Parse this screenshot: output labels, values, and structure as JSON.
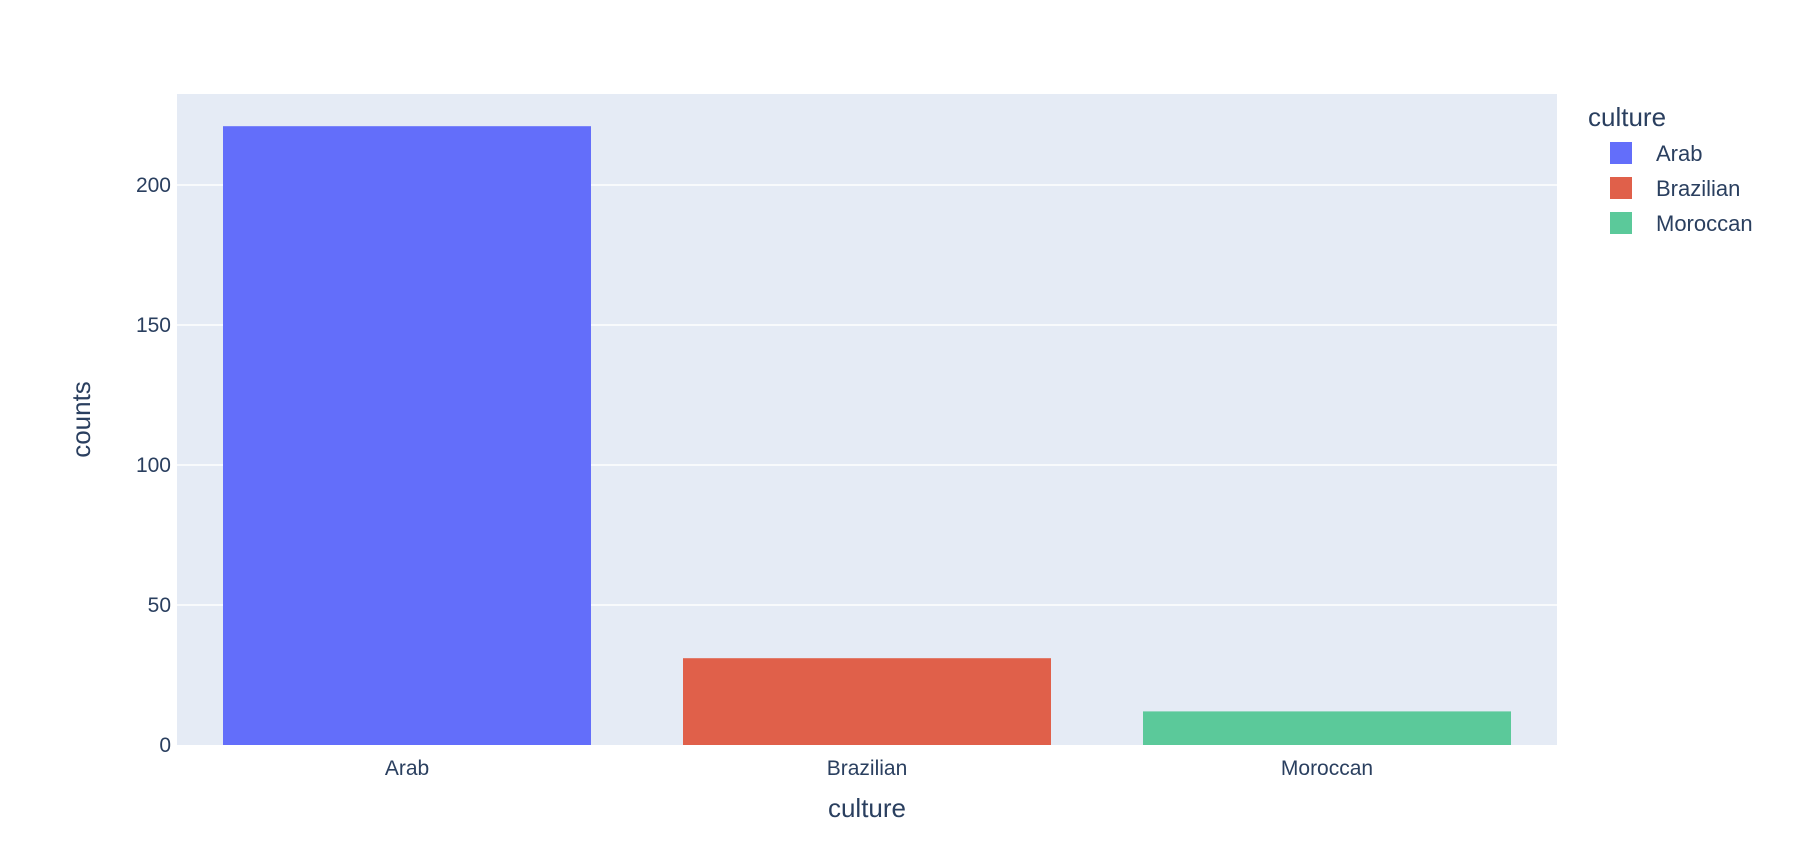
{
  "chart_data": {
    "type": "bar",
    "xlabel": "culture",
    "ylabel": "counts",
    "categories": [
      "Arab",
      "Brazilian",
      "Moroccan"
    ],
    "values": [
      221,
      31,
      12
    ],
    "ylim": [
      0,
      232.5
    ],
    "yticks": [
      0,
      50,
      100,
      150,
      200
    ],
    "grid": true,
    "legend": {
      "title": "culture",
      "placement": "top-right",
      "entries": [
        "Arab",
        "Brazilian",
        "Moroccan"
      ]
    },
    "colors": [
      "#636efa",
      "#e0604a",
      "#5bc99a"
    ],
    "plot_bg": "#e5ebf5",
    "text_color": "#2a3f5f"
  }
}
